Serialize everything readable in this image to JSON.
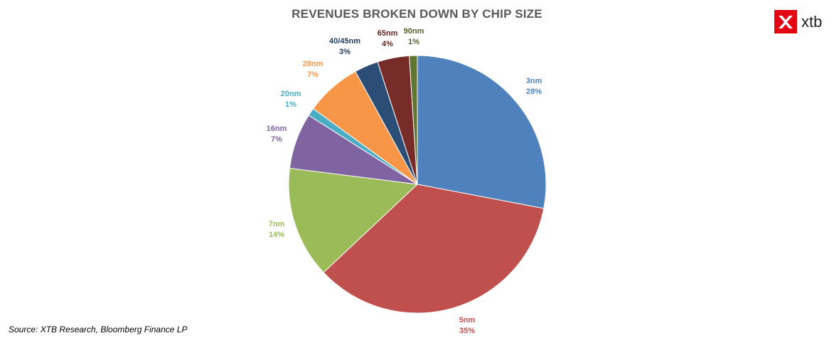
{
  "chart_data": {
    "type": "pie",
    "title": "REVENUES BROKEN DOWN BY CHIP SIZE",
    "categories": [
      "3nm",
      "5nm",
      "7nm",
      "16nm",
      "20nm",
      "28nm",
      "40/45nm",
      "65nm",
      "90nm"
    ],
    "values": [
      28,
      35,
      14,
      7,
      1,
      7,
      3,
      4,
      1
    ],
    "value_labels": [
      "28%",
      "35%",
      "14%",
      "7%",
      "1%",
      "7%",
      "3%",
      "4%",
      "1%"
    ],
    "colors": [
      "#4f81bd",
      "#c0504d",
      "#9bbb59",
      "#8064a2",
      "#4bacc6",
      "#f79646",
      "#2c4d75",
      "#772c2a",
      "#5f7530"
    ],
    "start_angle_deg": 0,
    "direction": "clockwise",
    "legend": "none (data labels outside slices)"
  },
  "logo": {
    "text": "xtb",
    "color": "#e30613"
  },
  "source": "Source: XTB Research, Bloomberg Finance LP"
}
